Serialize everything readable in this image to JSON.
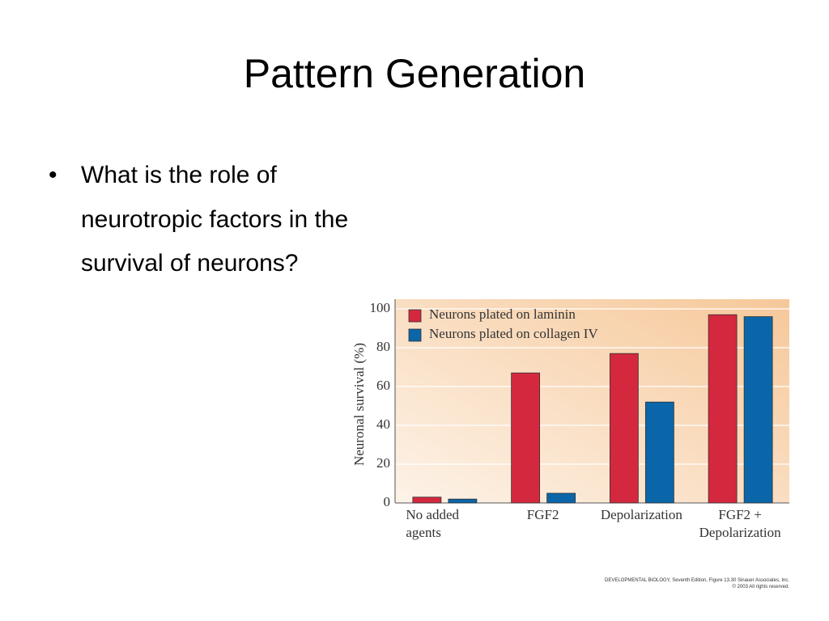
{
  "slide": {
    "title": "Pattern Generation",
    "bullet": "What is the role of neurotropic factors in the survival of neurons?"
  },
  "chart_data": {
    "type": "bar",
    "y_label": "Neuronal survival (%)",
    "categories": [
      "No added agents",
      "FGF2",
      "Depolarization",
      "FGF2 + Depolarization"
    ],
    "series": [
      {
        "name": "Neurons plated on laminin",
        "color": "#d4283e",
        "values": [
          3,
          67,
          77,
          97
        ]
      },
      {
        "name": "Neurons plated on collagen IV",
        "color": "#0a66a8",
        "values": [
          2,
          5,
          52,
          96
        ]
      }
    ],
    "ylim": [
      0,
      105
    ],
    "yticks": [
      0,
      20,
      40,
      60,
      80,
      100
    ],
    "grid": true,
    "legend": "top-left"
  },
  "credit": [
    "DEVELOPMENTAL BIOLOGY, Seventh Edition, Figure 13.30 Sinauer Associates, Inc.",
    "© 2003 All rights reserved."
  ]
}
